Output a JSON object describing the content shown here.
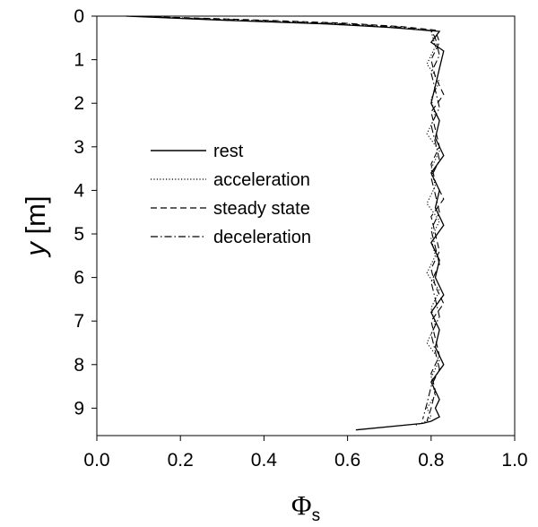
{
  "chart_data": {
    "type": "line",
    "xlabel": "Φs",
    "xlabel_main": "Φ",
    "xlabel_sub": "s",
    "ylabel": "y [m]",
    "ylabel_var": "y",
    "ylabel_unit": " [m]",
    "xlim": [
      0.0,
      1.0
    ],
    "ylim": [
      0,
      9.6
    ],
    "y_inverted": true,
    "x_ticks": [
      "0.0",
      "0.2",
      "0.4",
      "0.6",
      "0.8",
      "1.0"
    ],
    "y_ticks": [
      "0",
      "1",
      "2",
      "3",
      "4",
      "5",
      "6",
      "7",
      "8",
      "9"
    ],
    "grid": false,
    "legend_position": "center-left",
    "series": [
      {
        "name": "rest",
        "dash": "solid",
        "x": [
          0.07,
          0.32,
          0.55,
          0.7,
          0.82,
          0.8,
          0.83,
          0.82,
          0.81,
          0.8,
          0.82,
          0.81,
          0.83,
          0.8,
          0.82,
          0.81,
          0.83,
          0.8,
          0.82,
          0.81,
          0.83,
          0.8,
          0.82,
          0.81,
          0.83,
          0.8,
          0.82,
          0.81,
          0.82,
          0.8,
          0.78,
          0.62
        ],
        "y": [
          0.0,
          0.1,
          0.18,
          0.26,
          0.35,
          0.6,
          0.8,
          1.2,
          1.6,
          2.0,
          2.4,
          2.8,
          3.2,
          3.6,
          4.0,
          4.4,
          4.8,
          5.2,
          5.6,
          6.0,
          6.4,
          6.8,
          7.2,
          7.6,
          8.0,
          8.4,
          8.8,
          9.0,
          9.2,
          9.3,
          9.35,
          9.5
        ]
      },
      {
        "name": "acceleration",
        "dash": "dotted",
        "x": [
          0.08,
          0.34,
          0.57,
          0.71,
          0.8,
          0.81,
          0.79,
          0.82,
          0.8,
          0.81,
          0.79,
          0.82,
          0.8,
          0.81,
          0.79,
          0.82,
          0.8,
          0.81,
          0.79,
          0.82,
          0.8,
          0.81,
          0.79,
          0.82,
          0.8,
          0.81,
          0.79,
          0.8,
          0.79,
          0.76
        ],
        "y": [
          0.0,
          0.1,
          0.18,
          0.26,
          0.34,
          0.7,
          1.1,
          1.5,
          1.9,
          2.3,
          2.7,
          3.1,
          3.5,
          3.9,
          4.3,
          4.7,
          5.1,
          5.5,
          5.9,
          6.3,
          6.7,
          7.1,
          7.5,
          7.9,
          8.3,
          8.7,
          9.0,
          9.2,
          9.3,
          9.4
        ]
      },
      {
        "name": "steady state",
        "dash": "dashed",
        "x": [
          0.09,
          0.36,
          0.59,
          0.73,
          0.81,
          0.82,
          0.8,
          0.81,
          0.83,
          0.8,
          0.81,
          0.82,
          0.8,
          0.81,
          0.83,
          0.8,
          0.81,
          0.82,
          0.8,
          0.81,
          0.83,
          0.8,
          0.81,
          0.82,
          0.8,
          0.81,
          0.8,
          0.79
        ],
        "y": [
          0.0,
          0.08,
          0.16,
          0.24,
          0.32,
          0.6,
          1.0,
          1.4,
          1.8,
          2.2,
          2.6,
          3.0,
          3.4,
          3.8,
          4.2,
          4.6,
          5.0,
          5.4,
          5.8,
          6.2,
          6.6,
          7.0,
          7.4,
          7.8,
          8.2,
          8.6,
          9.0,
          9.3
        ]
      },
      {
        "name": "deceleration",
        "dash": "dashdot",
        "x": [
          0.08,
          0.35,
          0.58,
          0.72,
          0.8,
          0.81,
          0.82,
          0.8,
          0.81,
          0.82,
          0.8,
          0.81,
          0.82,
          0.8,
          0.81,
          0.82,
          0.8,
          0.81,
          0.82,
          0.8,
          0.81,
          0.82,
          0.8,
          0.81,
          0.82,
          0.8,
          0.79,
          0.78
        ],
        "y": [
          0.0,
          0.09,
          0.17,
          0.25,
          0.33,
          0.5,
          0.9,
          1.3,
          1.7,
          2.1,
          2.5,
          2.9,
          3.3,
          3.7,
          4.1,
          4.5,
          4.9,
          5.3,
          5.7,
          6.1,
          6.5,
          6.9,
          7.3,
          7.7,
          8.1,
          8.5,
          8.9,
          9.25
        ]
      }
    ]
  }
}
